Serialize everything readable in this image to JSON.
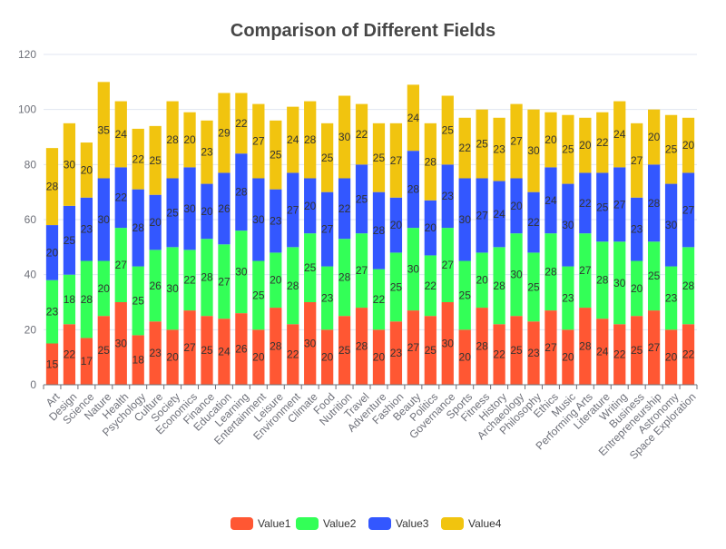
{
  "chart_data": {
    "type": "bar",
    "stacked": true,
    "title": "Comparison of Different Fields",
    "xlabel": "",
    "ylabel": "",
    "ylim": [
      0,
      120
    ],
    "yticks": [
      0,
      20,
      40,
      60,
      80,
      100,
      120
    ],
    "grid": true,
    "legend_position": "bottom-center",
    "categories": [
      "Art",
      "Design",
      "Science",
      "Nature",
      "Health",
      "Psychology",
      "Culture",
      "Society",
      "Economics",
      "Finance",
      "Education",
      "Learning",
      "Entertainment",
      "Leisure",
      "Environment",
      "Climate",
      "Food",
      "Nutrition",
      "Travel",
      "Adventure",
      "Fashion",
      "Beauty",
      "Politics",
      "Governance",
      "Sports",
      "Fitness",
      "History",
      "Archaeology",
      "Philosophy",
      "Ethics",
      "Music",
      "Performing Arts",
      "Literature",
      "Writing",
      "Business",
      "Entrepreneurship",
      "Astronomy",
      "Space Exploration"
    ],
    "series": [
      {
        "name": "Value1",
        "color": "#ff5733",
        "values": [
          15,
          22,
          17,
          25,
          30,
          18,
          23,
          20,
          27,
          25,
          24,
          26,
          20,
          28,
          22,
          30,
          20,
          25,
          28,
          20,
          23,
          27,
          25,
          30,
          20,
          28,
          22,
          25,
          23,
          27,
          20,
          28,
          24,
          22,
          25,
          27,
          20,
          22
        ]
      },
      {
        "name": "Value2",
        "color": "#33ff57",
        "values": [
          23,
          18,
          28,
          20,
          27,
          25,
          26,
          30,
          22,
          28,
          27,
          30,
          25,
          20,
          28,
          25,
          23,
          28,
          27,
          22,
          25,
          30,
          22,
          27,
          25,
          20,
          28,
          30,
          25,
          28,
          23,
          27,
          28,
          30,
          20,
          25,
          23,
          28
        ]
      },
      {
        "name": "Value3",
        "color": "#3357ff",
        "values": [
          20,
          25,
          23,
          30,
          22,
          28,
          20,
          25,
          30,
          20,
          26,
          28,
          30,
          23,
          27,
          20,
          27,
          22,
          25,
          28,
          20,
          28,
          20,
          23,
          30,
          27,
          24,
          20,
          22,
          24,
          30,
          22,
          25,
          27,
          23,
          28,
          30,
          27
        ]
      },
      {
        "name": "Value4",
        "color": "#f1c40f",
        "values": [
          28,
          30,
          20,
          35,
          24,
          22,
          25,
          28,
          20,
          23,
          29,
          22,
          27,
          25,
          24,
          28,
          25,
          30,
          22,
          25,
          27,
          24,
          28,
          25,
          22,
          25,
          23,
          27,
          30,
          20,
          25,
          20,
          22,
          24,
          27,
          20,
          25,
          20
        ]
      }
    ]
  }
}
